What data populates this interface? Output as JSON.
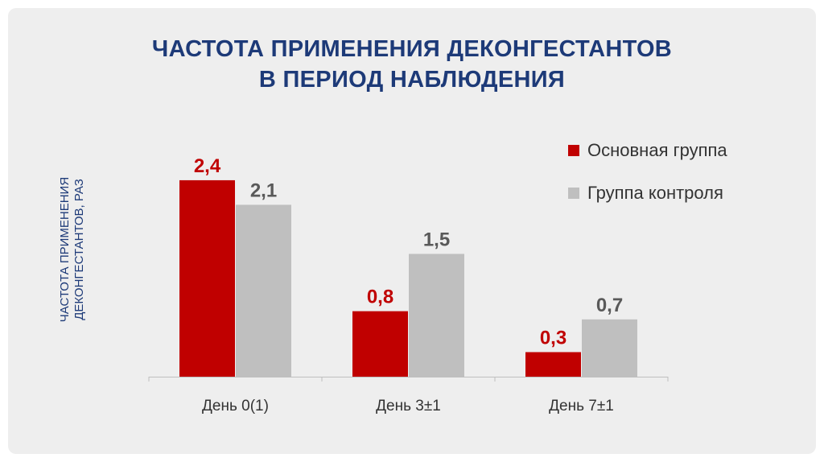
{
  "colors": {
    "main": "#c00000",
    "control": "#bfbfbf",
    "main_label": "#c00000",
    "control_label": "#595959",
    "title": "#1d3a78"
  },
  "chart_data": {
    "type": "bar",
    "title": [
      "ЧАСТОТА ПРИМЕНЕНИЯ ДЕКОНГЕСТАНТОВ",
      "В ПЕРИОД НАБЛЮДЕНИЯ"
    ],
    "ylabel": [
      "ЧАСТОТА ПРИМЕНЕНИЯ",
      "ДЕКОНГЕСТАНТОВ, РАЗ"
    ],
    "xlabel": "",
    "categories": [
      "День 0(1)",
      "День 3±1",
      "День 7±1"
    ],
    "series": [
      {
        "name": "Основная группа",
        "values": [
          2.4,
          0.8,
          0.3
        ],
        "labels": [
          "2,4",
          "0,8",
          "0,3"
        ],
        "color": "#c00000"
      },
      {
        "name": "Группа контроля",
        "values": [
          2.1,
          1.5,
          0.7
        ],
        "labels": [
          "2,1",
          "1,5",
          "0,7"
        ],
        "color": "#bfbfbf"
      }
    ],
    "ylim": [
      0,
      2.6
    ],
    "grid": false,
    "legend": "top-right"
  }
}
